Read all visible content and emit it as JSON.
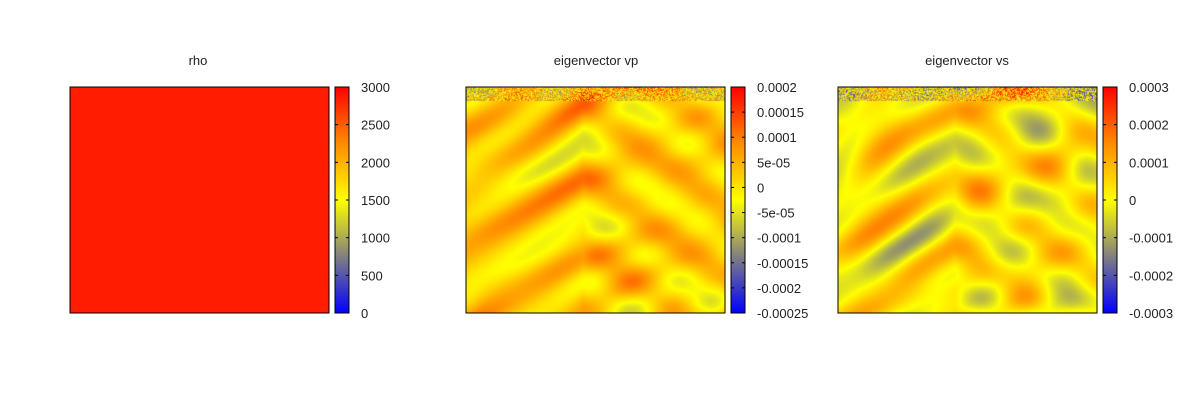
{
  "chart_data": [
    {
      "type": "heatmap",
      "title": "rho",
      "colorbar": {
        "ticks": [
          3000,
          2500,
          2000,
          1500,
          1000,
          500,
          0
        ],
        "tick_labels": [
          "3000",
          "2500",
          "2000",
          "1500",
          "1000",
          "500",
          "0"
        ],
        "range": [
          0,
          3000
        ]
      },
      "field": {
        "kind": "uniform",
        "value": 2850
      }
    },
    {
      "type": "heatmap",
      "title": "eigenvector vp",
      "colorbar": {
        "ticks": [
          0.0002,
          0.00015,
          0.0001,
          5e-05,
          0,
          -5e-05,
          -0.0001,
          -0.00015,
          -0.0002,
          -0.00025
        ],
        "tick_labels": [
          "0.0002",
          "0.00015",
          "0.0001",
          "5e-05",
          "0",
          "-5e-05",
          "-0.0001",
          "-0.00015",
          "-0.0002",
          "-0.00025"
        ],
        "range": [
          -0.00025,
          0.0002
        ]
      },
      "field": {
        "kind": "texture",
        "typical_range": [
          -0.0001,
          0.00015
        ]
      }
    },
    {
      "type": "heatmap",
      "title": "eigenvector vs",
      "colorbar": {
        "ticks": [
          0.0003,
          0.0002,
          0.0001,
          0,
          -0.0001,
          -0.0002,
          -0.0003
        ],
        "tick_labels": [
          "0.0003",
          "0.0002",
          "0.0001",
          "0",
          "-0.0001",
          "-0.0002",
          "-0.0003"
        ],
        "range": [
          -0.0003,
          0.0003
        ]
      },
      "field": {
        "kind": "texture",
        "typical_range": [
          -0.00015,
          0.0002
        ]
      }
    }
  ],
  "colors": {
    "colormap": [
      "#0000ff",
      "#808080",
      "#ffff00",
      "#ff8c00",
      "#ff0000"
    ],
    "frame": "#000000"
  }
}
